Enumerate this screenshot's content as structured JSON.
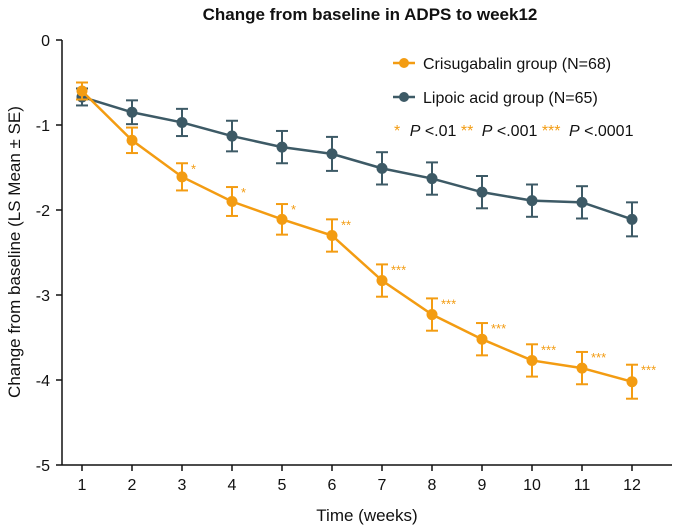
{
  "chart_data": {
    "type": "line",
    "title": "Change from baseline in ADPS to week12",
    "xlabel": "Time (weeks)",
    "ylabel": "Change from baseline (LS Mean ± SE)",
    "x": [
      1,
      2,
      3,
      4,
      5,
      6,
      7,
      8,
      9,
      10,
      11,
      12
    ],
    "xlim": [
      0.6,
      12.8
    ],
    "ylim": [
      -5,
      0
    ],
    "x_ticks": [
      "1",
      "2",
      "3",
      "4",
      "5",
      "6",
      "7",
      "8",
      "9",
      "10",
      "11",
      "12"
    ],
    "y_ticks": [
      "0",
      "-1",
      "-2",
      "-3",
      "-4",
      "-5"
    ],
    "y_tick_values": [
      0,
      -1,
      -2,
      -3,
      -4,
      -5
    ],
    "grid": false,
    "legend_position": "top-right",
    "series": [
      {
        "name": "Crisugabalin group (N=68)",
        "color": "#F39C12",
        "values": [
          -0.6,
          -1.18,
          -1.61,
          -1.9,
          -2.11,
          -2.3,
          -2.83,
          -3.23,
          -3.52,
          -3.77,
          -3.86,
          -4.02
        ],
        "se": [
          0.1,
          0.15,
          0.16,
          0.17,
          0.18,
          0.19,
          0.19,
          0.19,
          0.19,
          0.19,
          0.19,
          0.2
        ],
        "significance": [
          "",
          "",
          "*",
          "*",
          "*",
          "**",
          "***",
          "***",
          "***",
          "***",
          "***",
          "***"
        ]
      },
      {
        "name": "Lipoic acid group (N=65)",
        "color": "#3D5A66",
        "values": [
          -0.67,
          -0.85,
          -0.97,
          -1.13,
          -1.26,
          -1.34,
          -1.51,
          -1.63,
          -1.79,
          -1.89,
          -1.91,
          -2.11
        ],
        "se": [
          0.1,
          0.14,
          0.16,
          0.18,
          0.19,
          0.2,
          0.19,
          0.19,
          0.19,
          0.19,
          0.19,
          0.2
        ]
      }
    ],
    "annotation": {
      "stars1": "*",
      "p1": "P",
      "v1": "<.01",
      "stars2": "**",
      "p2": "P",
      "v2": "<.001",
      "stars3": "***",
      "p3": "P",
      "v3": "<.0001"
    }
  }
}
